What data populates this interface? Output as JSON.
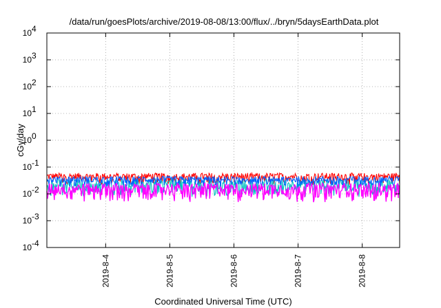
{
  "chart_data": {
    "type": "line",
    "title": "/data/run/goesPlots/archive/2019-08-08/13:00/flux/../bryn/5daysEarthData.plot",
    "xlabel": "Coordinated Universal Time (UTC)",
    "ylabel": "cGy/day",
    "yscale": "log",
    "ylim": [
      0.0001,
      10000
    ],
    "xlim": [
      "2019-08-03 02:00",
      "2019-08-08 14:00"
    ],
    "y_ticks": [
      {
        "value": 0.0001,
        "base": "10",
        "exp": "-4"
      },
      {
        "value": 0.001,
        "base": "10",
        "exp": "-3"
      },
      {
        "value": 0.01,
        "base": "10",
        "exp": "-2"
      },
      {
        "value": 0.1,
        "base": "10",
        "exp": "-1"
      },
      {
        "value": 1,
        "base": "10",
        "exp": "0"
      },
      {
        "value": 10,
        "base": "10",
        "exp": "1"
      },
      {
        "value": 100,
        "base": "10",
        "exp": "2"
      },
      {
        "value": 1000,
        "base": "10",
        "exp": "3"
      },
      {
        "value": 10000,
        "base": "10",
        "exp": "4"
      }
    ],
    "x_ticks": [
      {
        "date": "2019-08-04",
        "label": "2019-8-4"
      },
      {
        "date": "2019-08-05",
        "label": "2019-8-5"
      },
      {
        "date": "2019-08-06",
        "label": "2019-8-6"
      },
      {
        "date": "2019-08-07",
        "label": "2019-8-7"
      },
      {
        "date": "2019-08-08",
        "label": "2019-8-8"
      }
    ],
    "grid": true,
    "legend": "none",
    "series": [
      {
        "color": "#ff0000",
        "min": 0.018,
        "max": 0.06
      },
      {
        "color": "#00c0c0",
        "min": 0.006,
        "max": 0.035
      },
      {
        "color": "#0060ff",
        "min": 0.015,
        "max": 0.045
      },
      {
        "color": "#ff00ff",
        "min": 0.0035,
        "max": 0.025
      }
    ]
  }
}
